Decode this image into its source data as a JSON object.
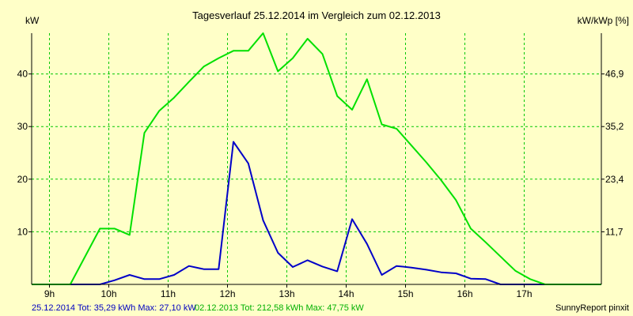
{
  "chart_data": {
    "type": "line",
    "title": "Tagesverlauf 25.12.2014 im Vergleich zum 02.12.2013",
    "ylabel_left": "kW",
    "ylabel_right": "kW/kWp [%]",
    "x_ticks": [
      {
        "label": "9h",
        "x": 9
      },
      {
        "label": "10h",
        "x": 10
      },
      {
        "label": "11h",
        "x": 11
      },
      {
        "label": "12h",
        "x": 12
      },
      {
        "label": "13h",
        "x": 13
      },
      {
        "label": "14h",
        "x": 14
      },
      {
        "label": "15h",
        "x": 15
      },
      {
        "label": "16h",
        "x": 16
      },
      {
        "label": "17h",
        "x": 17
      }
    ],
    "y_ticks_left": [
      {
        "label": "10",
        "y": 10
      },
      {
        "label": "20",
        "y": 20
      },
      {
        "label": "30",
        "y": 30
      },
      {
        "label": "40",
        "y": 40
      }
    ],
    "y_ticks_right": [
      {
        "label": "11,7",
        "y": 10
      },
      {
        "label": "23,4",
        "y": 20
      },
      {
        "label": "35,2",
        "y": 30
      },
      {
        "label": "46,9",
        "y": 40
      }
    ],
    "xlim": [
      8.7,
      18.3
    ],
    "ylim": [
      0,
      47.75
    ],
    "grid": true,
    "series": [
      {
        "color": "#0000c8",
        "points": [
          [
            8.7,
            0
          ],
          [
            9.35,
            0
          ],
          [
            9.85,
            0
          ],
          [
            10.1,
            0.8
          ],
          [
            10.35,
            1.8
          ],
          [
            10.6,
            1.0
          ],
          [
            10.85,
            1.0
          ],
          [
            11.1,
            1.8
          ],
          [
            11.35,
            3.5
          ],
          [
            11.6,
            2.9
          ],
          [
            11.85,
            2.9
          ],
          [
            12.1,
            27.1
          ],
          [
            12.35,
            23.0
          ],
          [
            12.6,
            12.2
          ],
          [
            12.85,
            6.0
          ],
          [
            13.1,
            3.3
          ],
          [
            13.35,
            4.6
          ],
          [
            13.6,
            3.4
          ],
          [
            13.85,
            2.5
          ],
          [
            14.1,
            12.4
          ],
          [
            14.35,
            7.7
          ],
          [
            14.6,
            1.8
          ],
          [
            14.85,
            3.5
          ],
          [
            15.1,
            3.2
          ],
          [
            15.35,
            2.8
          ],
          [
            15.6,
            2.3
          ],
          [
            15.85,
            2.1
          ],
          [
            16.1,
            1.1
          ],
          [
            16.35,
            1.0
          ],
          [
            16.6,
            0
          ],
          [
            17.1,
            0
          ],
          [
            18.3,
            0
          ]
        ]
      },
      {
        "color": "#00e000",
        "points": [
          [
            8.7,
            0
          ],
          [
            9.35,
            0
          ],
          [
            9.85,
            10.6
          ],
          [
            10.1,
            10.6
          ],
          [
            10.35,
            9.4
          ],
          [
            10.6,
            28.8
          ],
          [
            10.85,
            33.0
          ],
          [
            11.1,
            35.5
          ],
          [
            11.35,
            38.5
          ],
          [
            11.6,
            41.4
          ],
          [
            11.85,
            43.0
          ],
          [
            12.1,
            44.4
          ],
          [
            12.35,
            44.4
          ],
          [
            12.6,
            47.75
          ],
          [
            12.85,
            40.5
          ],
          [
            13.1,
            43.0
          ],
          [
            13.35,
            46.7
          ],
          [
            13.6,
            43.8
          ],
          [
            13.85,
            35.8
          ],
          [
            14.1,
            33.2
          ],
          [
            14.35,
            39.0
          ],
          [
            14.6,
            30.4
          ],
          [
            14.85,
            29.6
          ],
          [
            15.1,
            26.4
          ],
          [
            15.35,
            23.2
          ],
          [
            15.6,
            19.8
          ],
          [
            15.85,
            16.0
          ],
          [
            16.1,
            10.6
          ],
          [
            16.35,
            8.0
          ],
          [
            16.6,
            5.3
          ],
          [
            16.85,
            2.6
          ],
          [
            17.1,
            1.0
          ],
          [
            17.35,
            0
          ],
          [
            18.3,
            0
          ]
        ]
      }
    ],
    "footer": {
      "blue": "25.12.2014 Tot: 35,29 kWh Max: 27,10 kW",
      "green": "02.12.2013 Tot: 212,58 kWh Max: 47,75 kW",
      "credit": "SunnyReport pinxit"
    }
  }
}
